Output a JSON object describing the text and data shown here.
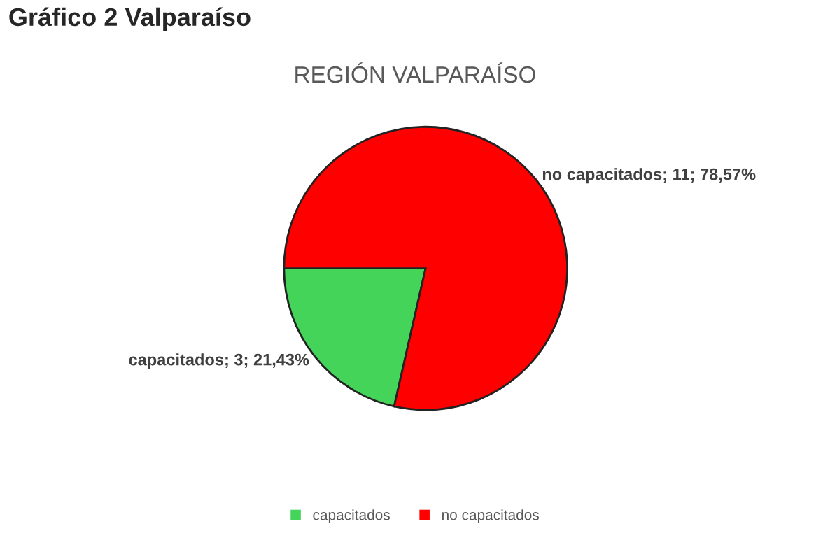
{
  "chart_data": {
    "type": "pie",
    "title": "REGIÓN VALPARAÍSO",
    "annotations": [
      "Gráfico 2 Valparaíso"
    ],
    "categories": [
      "capacitados",
      "no capacitados"
    ],
    "values": [
      3,
      11
    ],
    "colors": [
      "#44d45a",
      "#ff0000"
    ],
    "value_labels": [
      "capacitados; 3; 21,43%",
      "no capacitados; 11; 78,57%"
    ],
    "legend": "bottom"
  }
}
